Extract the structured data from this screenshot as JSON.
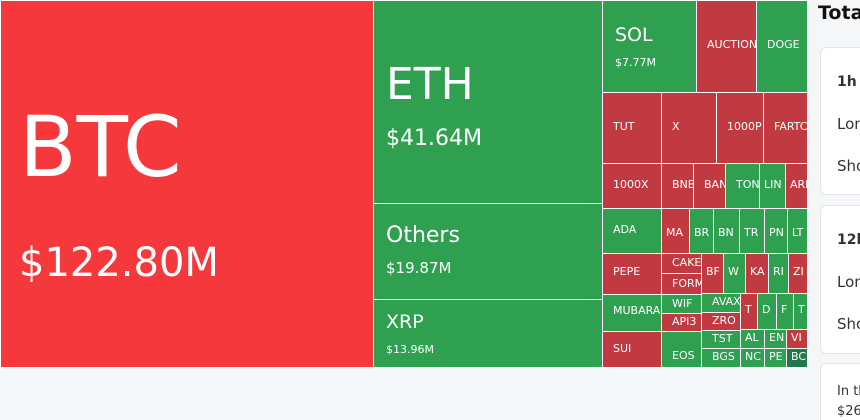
{
  "tiles": [
    {
      "label": "BTC",
      "value": "$122.80M"
    },
    {
      "label": "ETH",
      "value": "$41.64M"
    },
    {
      "label": "Others",
      "value": "$19.87M"
    },
    {
      "label": "XRP",
      "value": "$13.96M"
    },
    {
      "label": "SOL",
      "value": "$7.77M"
    },
    {
      "label": "AUCTION"
    },
    {
      "label": "DOGE"
    },
    {
      "label": "TUT"
    },
    {
      "label": "X"
    },
    {
      "label": "1000P"
    },
    {
      "label": "FARTC"
    },
    {
      "label": "1000X"
    },
    {
      "label": "BNB"
    },
    {
      "label": "BAN"
    },
    {
      "label": "TON"
    },
    {
      "label": "LIN"
    },
    {
      "label": "ARB"
    },
    {
      "label": "ADA"
    },
    {
      "label": "PEPE"
    },
    {
      "label": "MUBARA"
    },
    {
      "label": "SUI"
    },
    {
      "label": "MA"
    },
    {
      "label": "BR"
    },
    {
      "label": "BN"
    },
    {
      "label": "TR"
    },
    {
      "label": "PN"
    },
    {
      "label": "LT"
    },
    {
      "label": "CAKE"
    },
    {
      "label": "BF"
    },
    {
      "label": "W"
    },
    {
      "label": "KA"
    },
    {
      "label": "RI"
    },
    {
      "label": "ZI"
    },
    {
      "label": "FORM"
    },
    {
      "label": "WIF"
    },
    {
      "label": "API3"
    },
    {
      "label": "EOS"
    },
    {
      "label": "AVAX"
    },
    {
      "label": "ZRO"
    },
    {
      "label": "TST"
    },
    {
      "label": "BGS"
    },
    {
      "label": "T"
    },
    {
      "label": "D"
    },
    {
      "label": "F"
    },
    {
      "label": "T"
    },
    {
      "label": "AL"
    },
    {
      "label": "EN"
    },
    {
      "label": "VI"
    },
    {
      "label": "NC"
    },
    {
      "label": "PE"
    },
    {
      "label": "BC"
    }
  ],
  "panel": {
    "title": "Tota",
    "cards": [
      {
        "heading": "1h",
        "rows": [
          "Lon",
          "Sho"
        ]
      },
      {
        "heading": "12h",
        "rows": [
          "Lon",
          "Sho"
        ]
      },
      {
        "heading": "In th",
        "rows": [
          "$26"
        ]
      }
    ]
  }
}
